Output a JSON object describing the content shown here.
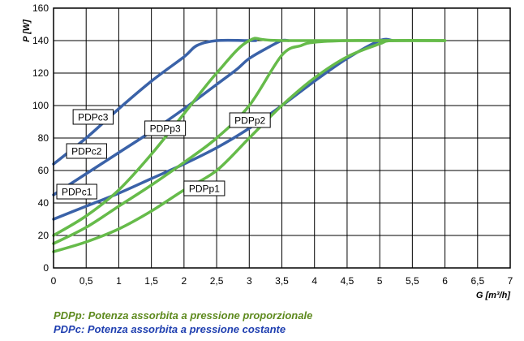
{
  "chart_data": {
    "type": "line",
    "title": "",
    "xlabel": "G [m³/h]",
    "ylabel": "P [W]",
    "xlim": [
      0,
      7
    ],
    "ylim": [
      0,
      160
    ],
    "xticks": [
      0,
      0.5,
      1,
      1.5,
      2,
      2.5,
      3,
      3.5,
      4,
      4.5,
      5,
      5.5,
      6,
      6.5,
      7
    ],
    "xtick_labels": [
      "0",
      "0,5",
      "1",
      "1,5",
      "2",
      "2,5",
      "3",
      "3,5",
      "4",
      "4,5",
      "5",
      "5,5",
      "6",
      "6,5",
      "7"
    ],
    "yticks": [
      0,
      20,
      40,
      60,
      80,
      100,
      120,
      140,
      160
    ],
    "ytick_labels": [
      "0",
      "20",
      "40",
      "60",
      "80",
      "100",
      "120",
      "140",
      "160"
    ],
    "grid": true,
    "legend": "none",
    "colors": {
      "PDPc": "#3a62a8",
      "PDPp": "#66bb4a",
      "note_p": "#5e8a1e",
      "note_c": "#1f3fb0"
    },
    "series": [
      {
        "name": "PDPc1",
        "color": "#3a62a8",
        "x": [
          0,
          0.5,
          1,
          1.5,
          2,
          2.5,
          3,
          3.5,
          4,
          4.5,
          5,
          5.2
        ],
        "y": [
          30,
          38,
          46,
          55,
          64,
          74,
          86,
          100,
          115,
          129,
          140,
          140
        ]
      },
      {
        "name": "PDPc2",
        "color": "#3a62a8",
        "x": [
          0,
          0.5,
          1,
          1.5,
          2,
          2.5,
          2.8,
          3,
          3.3,
          3.5,
          3.6
        ],
        "y": [
          45,
          58,
          71,
          84,
          98,
          113,
          122,
          129,
          136,
          140,
          140
        ]
      },
      {
        "name": "PDPc3",
        "color": "#3a62a8",
        "x": [
          0,
          0.5,
          1,
          1.5,
          2,
          2.2,
          2.5,
          3,
          3.1
        ],
        "y": [
          64,
          80,
          98,
          115,
          130,
          137,
          140,
          140,
          140
        ]
      },
      {
        "name": "PDPp1",
        "color": "#66bb4a",
        "x": [
          0,
          0.5,
          1,
          1.5,
          2,
          2.5,
          3,
          3.5,
          4,
          4.5,
          5,
          5.2,
          6
        ],
        "y": [
          10,
          16,
          24,
          35,
          48,
          60,
          80,
          100,
          117,
          130,
          138,
          140,
          140
        ]
      },
      {
        "name": "PDPp2",
        "color": "#66bb4a",
        "x": [
          0,
          0.5,
          1,
          1.5,
          2,
          2.5,
          3,
          3.5,
          3.8,
          4,
          4.5,
          5,
          6
        ],
        "y": [
          15,
          25,
          38,
          51,
          65,
          80,
          100,
          131,
          137,
          139,
          140,
          140,
          140
        ]
      },
      {
        "name": "PDPp3",
        "color": "#66bb4a",
        "x": [
          0,
          0.5,
          1,
          1.5,
          2,
          2.5,
          3,
          3.5,
          6
        ],
        "y": [
          20,
          32,
          48,
          70,
          95,
          120,
          140,
          140,
          140
        ]
      }
    ],
    "annotations": [
      {
        "text": "PDPc3",
        "x": 0.3,
        "y": 93
      },
      {
        "text": "PDPc2",
        "x": 0.2,
        "y": 72
      },
      {
        "text": "PDPc1",
        "x": 0.05,
        "y": 47
      },
      {
        "text": "PDPp3",
        "x": 1.4,
        "y": 86
      },
      {
        "text": "PDPp2",
        "x": 2.7,
        "y": 91
      },
      {
        "text": "PDPp1",
        "x": 2,
        "y": 49
      }
    ]
  },
  "notes": {
    "pdpp": "PDPp:  Potenza assorbita a pressione proporzionale",
    "pdpc": "PDPc:  Potenza assorbita a pressione costante"
  }
}
